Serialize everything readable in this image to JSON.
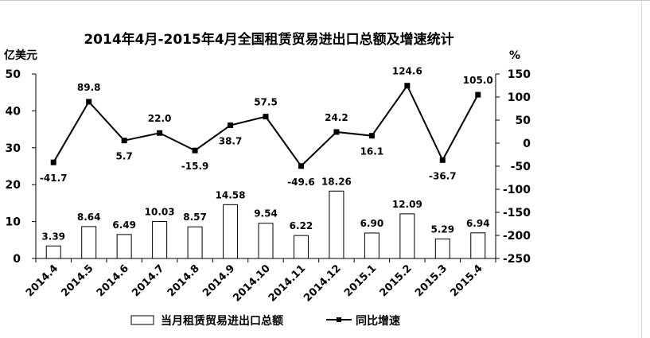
{
  "chart_data": {
    "type": "bar+line",
    "title": "2014年4月-2015年4月全国租赁贸易进出口总额及增速统计",
    "left_unit": "亿美元",
    "right_unit": "%",
    "categories": [
      "2014.4",
      "2014.5",
      "2014.6",
      "2014.7",
      "2014.8",
      "2014.9",
      "2014.10",
      "2014.11",
      "2014.12",
      "2015.1",
      "2015.2",
      "2015.3",
      "2015.4"
    ],
    "series": [
      {
        "name": "当月租赁贸易进出口总额",
        "type": "bar",
        "axis": "left",
        "values": [
          3.39,
          8.64,
          6.49,
          10.03,
          8.57,
          14.58,
          9.54,
          6.22,
          18.26,
          6.9,
          12.09,
          5.29,
          6.94
        ],
        "labels": [
          "3.39",
          "8.64",
          "6.49",
          "10.03",
          "8.57",
          "14.58",
          "9.54",
          "6.22",
          "18.26",
          "6.90",
          "12.09",
          "5.29",
          "6.94"
        ]
      },
      {
        "name": "同比增速",
        "type": "line",
        "axis": "right",
        "values": [
          -41.7,
          89.8,
          5.7,
          22.0,
          -15.9,
          38.7,
          57.5,
          -49.6,
          24.2,
          16.1,
          124.6,
          -36.7,
          105.0
        ],
        "labels": [
          "-41.7",
          "89.8",
          "5.7",
          "22.0",
          "-15.9",
          "38.7",
          "57.5",
          "-49.6",
          "24.2",
          "16.1",
          "124.6",
          "-36.7",
          "105.0"
        ]
      }
    ],
    "left_axis": {
      "ylim": [
        0,
        50
      ],
      "ticks": [
        "0",
        "10",
        "20",
        "30",
        "40",
        "50"
      ]
    },
    "right_axis": {
      "ylim": [
        -250,
        150
      ],
      "ticks": [
        "-250",
        "-200",
        "-150",
        "-100",
        "-50",
        "0",
        "50",
        "100",
        "150"
      ]
    },
    "legend_position": "bottom",
    "grid": false
  }
}
